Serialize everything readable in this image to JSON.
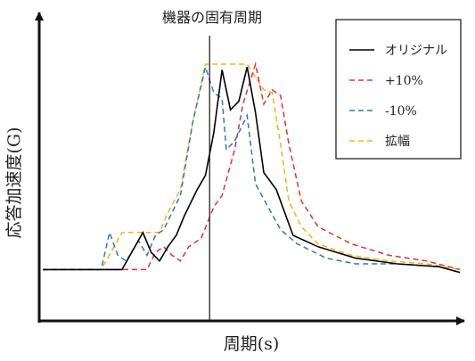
{
  "chart_data": {
    "type": "line",
    "title": "",
    "xlabel": "周期(s)",
    "ylabel": "応答加速度(G)",
    "x_ticks": "none",
    "y_ticks": "none",
    "grid": false,
    "legend_position": "top-right",
    "xlim": [
      0,
      100
    ],
    "ylim": [
      0,
      100
    ],
    "annotation": {
      "label": "機器の固有周期",
      "x": 40
    },
    "series": [
      {
        "name": "オリジナル",
        "color": "#000000",
        "dash": "solid",
        "x": [
          0,
          19,
          24,
          26,
          28,
          30,
          32,
          34,
          37,
          39,
          41,
          43,
          45,
          47,
          49,
          51,
          53,
          56,
          60,
          66,
          75,
          85,
          95,
          100
        ],
        "y": [
          18,
          18,
          31,
          24,
          21,
          26,
          30,
          37,
          46,
          51,
          66,
          88,
          74,
          77,
          89,
          73,
          52,
          46,
          30,
          26,
          22,
          20,
          19,
          17
        ]
      },
      {
        "name": "+10%",
        "color": "#e0303a",
        "dash": "dashed",
        "x": [
          0,
          19,
          25,
          27,
          29,
          31,
          33,
          35,
          38,
          41,
          43,
          46,
          48,
          51,
          53,
          55,
          57,
          59,
          62,
          66,
          74,
          83,
          92,
          100
        ],
        "y": [
          18,
          18,
          18,
          24,
          26,
          23,
          21,
          26,
          29,
          40,
          44,
          60,
          76,
          90,
          76,
          81,
          79,
          62,
          42,
          33,
          27,
          23,
          21,
          18
        ]
      },
      {
        "name": "-10%",
        "color": "#2f78b7",
        "dash": "dashed",
        "x": [
          0,
          14,
          16,
          18,
          20,
          23,
          25,
          27,
          29,
          31,
          33,
          36,
          39,
          41,
          43,
          44,
          46,
          49,
          51,
          54,
          57,
          61,
          68,
          75,
          85,
          95,
          100
        ],
        "y": [
          18,
          18,
          31,
          23,
          21,
          28,
          23,
          30,
          32,
          38,
          44,
          70,
          89,
          80,
          78,
          60,
          63,
          72,
          48,
          40,
          32,
          27,
          22,
          20,
          20,
          19,
          17
        ]
      },
      {
        "name": "拡幅",
        "color": "#f3b21b",
        "dash": "dashed",
        "x": [
          0,
          14,
          19,
          28,
          30,
          33,
          36,
          39,
          49,
          53,
          55,
          57,
          59,
          62,
          66,
          74,
          83,
          92,
          100
        ],
        "y": [
          18,
          18,
          31,
          31,
          38,
          46,
          70,
          90,
          90,
          81,
          80,
          62,
          42,
          33,
          27,
          23,
          21,
          20,
          18
        ]
      }
    ]
  }
}
